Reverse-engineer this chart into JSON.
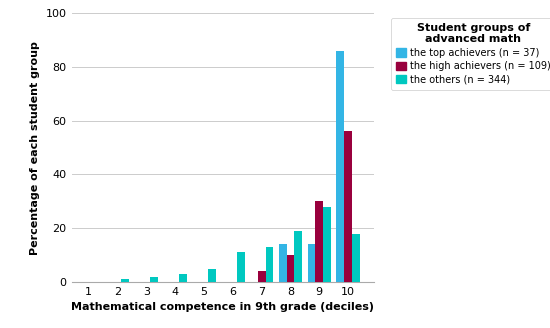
{
  "title": "Student groups of\nadvanced math",
  "xlabel": "Mathematical competence in 9th grade (deciles)",
  "ylabel": "Percentage of each student group",
  "deciles": [
    1,
    2,
    3,
    4,
    5,
    6,
    7,
    8,
    9,
    10
  ],
  "top_achievers": [
    0,
    0,
    0,
    0,
    0,
    0,
    0,
    14,
    14,
    86
  ],
  "high_achievers": [
    0,
    0,
    0,
    0,
    0,
    0,
    4,
    10,
    30,
    56
  ],
  "others": [
    0,
    1,
    2,
    3,
    5,
    11,
    13,
    19,
    28,
    18
  ],
  "color_top": "#33b5e5",
  "color_high": "#99003d",
  "color_others": "#00c8c0",
  "legend_labels": [
    "the top achievers (n = 37)",
    "the high achievers (n = 109)",
    "the others (n = 344)"
  ],
  "ylim": [
    0,
    100
  ],
  "yticks": [
    0,
    20,
    40,
    60,
    80,
    100
  ],
  "background_color": "#ffffff"
}
